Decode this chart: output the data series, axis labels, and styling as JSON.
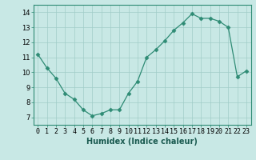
{
  "x": [
    0,
    1,
    2,
    3,
    4,
    5,
    6,
    7,
    8,
    9,
    10,
    11,
    12,
    13,
    14,
    15,
    16,
    17,
    18,
    19,
    20,
    21,
    22,
    23
  ],
  "y": [
    11.2,
    10.3,
    9.6,
    8.6,
    8.2,
    7.5,
    7.1,
    7.25,
    7.5,
    7.5,
    8.6,
    9.4,
    11.0,
    11.5,
    12.1,
    12.8,
    13.3,
    13.9,
    13.6,
    13.6,
    13.4,
    13.0,
    9.7,
    10.1
  ],
  "xlabel": "Humidex (Indice chaleur)",
  "xlim": [
    -0.5,
    23.5
  ],
  "ylim": [
    6.5,
    14.5
  ],
  "yticks": [
    7,
    8,
    9,
    10,
    11,
    12,
    13,
    14
  ],
  "xticks": [
    0,
    1,
    2,
    3,
    4,
    5,
    6,
    7,
    8,
    9,
    10,
    11,
    12,
    13,
    14,
    15,
    16,
    17,
    18,
    19,
    20,
    21,
    22,
    23
  ],
  "line_color": "#2e8b74",
  "marker": "D",
  "marker_size": 2.5,
  "bg_color": "#c8e8e5",
  "grid_color": "#a0ccc8",
  "tick_fontsize": 6,
  "xlabel_fontsize": 7
}
